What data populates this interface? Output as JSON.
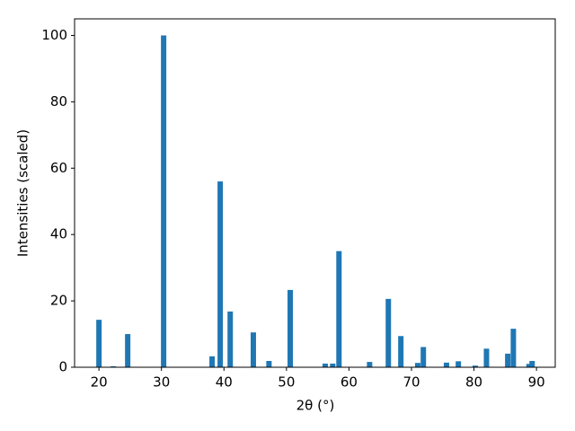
{
  "chart_data": {
    "type": "bar",
    "xlabel": "2θ (°)",
    "ylabel": "Intensities (scaled)",
    "x": [
      20.0,
      22.3,
      24.6,
      30.35,
      38.1,
      39.4,
      41.0,
      44.7,
      47.2,
      50.6,
      56.2,
      57.4,
      58.4,
      63.3,
      66.3,
      68.3,
      71.0,
      71.9,
      75.6,
      77.5,
      80.2,
      82.0,
      85.4,
      86.3,
      88.8,
      89.3
    ],
    "values": [
      14.3,
      0.3,
      10,
      100,
      3.3,
      56,
      16.8,
      10.5,
      1.9,
      23.3,
      1.1,
      1.1,
      35,
      1.6,
      20.6,
      9.4,
      1.3,
      6.1,
      1.4,
      1.8,
      0.5,
      5.6,
      4.1,
      11.6,
      1.0,
      1.9
    ],
    "color": "#1f77b4",
    "xlim": [
      16.1,
      93.0
    ],
    "ylim": [
      0,
      105
    ],
    "xticks": [
      20,
      30,
      40,
      50,
      60,
      70,
      80,
      90
    ],
    "yticks": [
      0,
      20,
      40,
      60,
      80,
      100
    ],
    "grid": false
  }
}
